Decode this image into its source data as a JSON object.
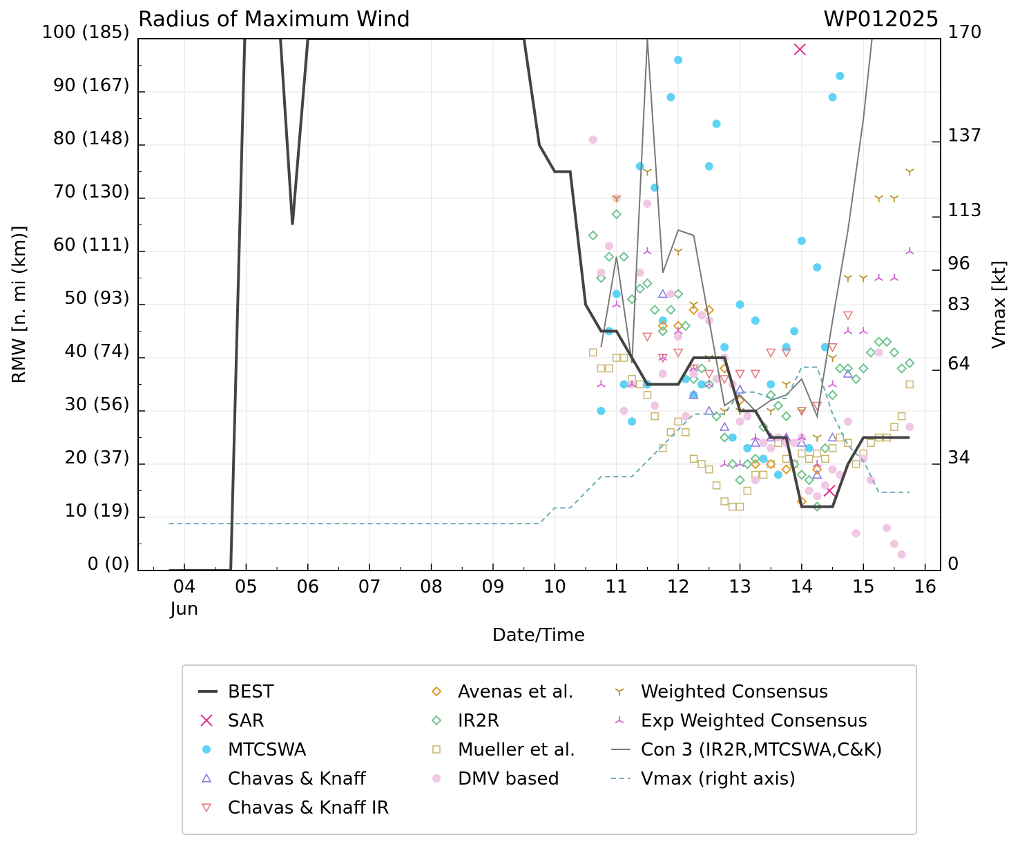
{
  "chart_data": {
    "type": "scatter",
    "title": "Radius of Maximum Wind",
    "storm_id": "WP012025",
    "xlabel": "Date/Time",
    "ylabel": "RMW [n. mi (km)]",
    "y2label": "Vmax [kt]",
    "x_unit": "day of June 2025",
    "xlim": [
      3.25,
      16.25
    ],
    "ylim": [
      0,
      100
    ],
    "grid": true,
    "x_ticks": [
      {
        "value": 4,
        "label": "04"
      },
      {
        "value": 5,
        "label": "05"
      },
      {
        "value": 6,
        "label": "06"
      },
      {
        "value": 7,
        "label": "07"
      },
      {
        "value": 8,
        "label": "08"
      },
      {
        "value": 9,
        "label": "09"
      },
      {
        "value": 10,
        "label": "10"
      },
      {
        "value": 11,
        "label": "11"
      },
      {
        "value": 12,
        "label": "12"
      },
      {
        "value": 13,
        "label": "13"
      },
      {
        "value": 14,
        "label": "14"
      },
      {
        "value": 15,
        "label": "15"
      },
      {
        "value": 16,
        "label": "16"
      }
    ],
    "x_month_label": "Jun",
    "y_ticks": [
      {
        "value": 0,
        "label": "0 (0)"
      },
      {
        "value": 10,
        "label": "10 (19)"
      },
      {
        "value": 20,
        "label": "20 (37)"
      },
      {
        "value": 30,
        "label": "30 (56)"
      },
      {
        "value": 40,
        "label": "40 (74)"
      },
      {
        "value": 50,
        "label": "50 (93)"
      },
      {
        "value": 60,
        "label": "60 (111)"
      },
      {
        "value": 70,
        "label": "70 (130)"
      },
      {
        "value": 80,
        "label": "80 (148)"
      },
      {
        "value": 90,
        "label": "90 (167)"
      },
      {
        "value": 100,
        "label": "100 (185)"
      }
    ],
    "y2_ticks": [
      {
        "value": 0,
        "label": "0"
      },
      {
        "value": 34,
        "label": "34"
      },
      {
        "value": 64,
        "label": "64"
      },
      {
        "value": 83,
        "label": "83"
      },
      {
        "value": 96,
        "label": "96"
      },
      {
        "value": 113,
        "label": "113"
      },
      {
        "value": 137,
        "label": "137"
      },
      {
        "value": 170,
        "label": "170"
      }
    ],
    "y2lim": [
      0,
      170
    ],
    "legend_position": "below",
    "series": [
      {
        "name": "BEST",
        "kind": "line",
        "color": "#444444",
        "style": "solid-thick",
        "x": [
          3.75,
          4.0,
          4.25,
          4.5,
          4.75,
          5.0,
          5.25,
          5.5,
          5.75,
          6.0,
          6.25,
          6.5,
          9.5,
          9.75,
          10.0,
          10.25,
          10.5,
          10.75,
          11.0,
          11.25,
          11.5,
          11.75,
          12.0,
          12.25,
          12.5,
          12.75,
          13.0,
          13.25,
          13.5,
          13.75,
          14.0,
          14.25,
          14.5,
          14.75,
          15.0,
          15.25,
          15.5,
          15.75
        ],
        "y": [
          0,
          0,
          0,
          0,
          0,
          110,
          110,
          110,
          65,
          100,
          100,
          100,
          100,
          80,
          75,
          75,
          50,
          45,
          45,
          40,
          35,
          35,
          35,
          40,
          40,
          40,
          30,
          30,
          25,
          25,
          12,
          12,
          12,
          20,
          25,
          25,
          25,
          25
        ]
      },
      {
        "name": "SAR",
        "kind": "marker",
        "marker": "x",
        "color": "#e0308f",
        "x": [
          13.97,
          14.45
        ],
        "y": [
          98,
          15
        ]
      },
      {
        "name": "MTCSWA",
        "kind": "marker",
        "marker": "dot",
        "color": "#5fd3f5",
        "x": [
          10.75,
          10.88,
          11.0,
          11.12,
          11.25,
          11.38,
          11.5,
          11.62,
          11.75,
          11.88,
          12.0,
          12.12,
          12.25,
          12.38,
          12.5,
          12.62,
          12.75,
          12.88,
          13.0,
          13.12,
          13.25,
          13.38,
          13.5,
          13.62,
          13.75,
          13.88,
          14.0,
          14.12,
          14.25,
          14.38,
          14.5,
          14.62
        ],
        "y": [
          30,
          45,
          52,
          35,
          28,
          76,
          35,
          72,
          47,
          89,
          96,
          36,
          33,
          35,
          76,
          84,
          42,
          25,
          50,
          23,
          47,
          21,
          35,
          18,
          42,
          45,
          62,
          23,
          57,
          42,
          89,
          93
        ]
      },
      {
        "name": "Chavas & Knaff",
        "kind": "marker",
        "marker": "tri-up",
        "color": "#8c7ae6",
        "x": [
          11.75,
          12.25,
          12.5,
          12.75,
          13.0,
          13.25,
          13.5,
          13.75,
          14.0,
          14.25,
          14.5,
          14.75
        ],
        "y": [
          52,
          33,
          30,
          27,
          34,
          24,
          25,
          25,
          24,
          18,
          25,
          37
        ]
      },
      {
        "name": "Chavas & Knaff IR",
        "kind": "marker",
        "marker": "tri-down",
        "color": "#e57d7d",
        "x": [
          11.5,
          11.75,
          12.0,
          12.25,
          12.5,
          12.75,
          13.0,
          13.25,
          13.5,
          13.75,
          14.0,
          14.25,
          14.5,
          14.75
        ],
        "y": [
          44,
          40,
          41,
          38,
          37,
          36,
          37,
          37,
          41,
          41,
          30,
          31,
          42,
          48
        ]
      },
      {
        "name": "Avenas et al.",
        "kind": "marker",
        "marker": "diamond",
        "color": "#e39a2b",
        "x": [
          11.75,
          12.0,
          12.25,
          12.5,
          12.75,
          13.0,
          13.25,
          13.5,
          13.75,
          14.0,
          14.25
        ],
        "y": [
          46,
          46,
          49,
          49,
          38,
          32,
          20,
          20,
          19,
          13,
          19
        ]
      },
      {
        "name": "IR2R",
        "kind": "marker",
        "marker": "diamond",
        "color": "#6cc48c",
        "x": [
          10.62,
          10.75,
          10.88,
          11.0,
          11.12,
          11.25,
          11.38,
          11.5,
          11.62,
          11.75,
          11.88,
          12.0,
          12.12,
          12.25,
          12.38,
          12.5,
          12.62,
          12.75,
          12.88,
          13.0,
          13.12,
          13.25,
          13.38,
          13.5,
          13.62,
          13.75,
          13.88,
          14.0,
          14.12,
          14.25,
          14.38,
          14.5,
          14.62,
          14.75,
          14.88,
          15.0,
          15.12,
          15.25,
          15.38,
          15.5,
          15.62,
          15.75
        ],
        "y": [
          63,
          55,
          59,
          67,
          59,
          51,
          53,
          54,
          49,
          45,
          49,
          52,
          46,
          36,
          38,
          35,
          29,
          25,
          20,
          17,
          20,
          21,
          27,
          33,
          31,
          29,
          20,
          18,
          17,
          12,
          23,
          33,
          38,
          38,
          36,
          38,
          41,
          43,
          43,
          41,
          38,
          39
        ]
      },
      {
        "name": "Mueller et al.",
        "kind": "marker",
        "marker": "square",
        "color": "#c9b56e",
        "x": [
          10.62,
          10.75,
          10.88,
          11.0,
          11.12,
          11.25,
          11.38,
          11.5,
          11.62,
          11.75,
          11.88,
          12.0,
          12.12,
          12.25,
          12.38,
          12.5,
          12.62,
          12.75,
          12.88,
          13.0,
          13.12,
          13.25,
          13.38,
          13.5,
          13.62,
          13.75,
          13.88,
          14.0,
          14.12,
          14.25,
          14.38,
          14.5,
          14.62,
          14.75,
          14.88,
          15.0,
          15.12,
          15.25,
          15.38,
          15.5,
          15.62,
          15.75
        ],
        "y": [
          41,
          38,
          38,
          40,
          40,
          36,
          35,
          33,
          29,
          23,
          26,
          28,
          26,
          21,
          20,
          19,
          16,
          13,
          12,
          12,
          15,
          18,
          18,
          20,
          24,
          21,
          20,
          22,
          21,
          22,
          21,
          23,
          25,
          24,
          20,
          22,
          24,
          25,
          25,
          27,
          29,
          35
        ]
      },
      {
        "name": "DMV based",
        "kind": "marker",
        "marker": "dot",
        "color": "#f0c8e4",
        "x": [
          10.62,
          10.75,
          10.88,
          11.0,
          11.12,
          11.25,
          11.38,
          11.5,
          11.62,
          11.75,
          11.88,
          12.0,
          12.12,
          12.25,
          12.38,
          12.5,
          12.62,
          12.75,
          12.88,
          13.0,
          13.12,
          13.25,
          13.38,
          13.5,
          13.62,
          13.75,
          13.88,
          14.0,
          14.12,
          14.25,
          14.38,
          14.5,
          14.62,
          14.75,
          14.88,
          15.0,
          15.12,
          15.25,
          15.38,
          15.5,
          15.62,
          15.75
        ],
        "y": [
          81,
          56,
          61,
          70,
          30,
          35,
          56,
          69,
          31,
          37,
          52,
          44,
          29,
          37,
          48,
          47,
          36,
          40,
          35,
          28,
          29,
          17,
          24,
          23,
          25,
          24,
          24,
          25,
          15,
          14,
          16,
          19,
          18,
          28,
          7,
          21,
          17,
          41,
          8,
          5,
          3,
          27
        ]
      },
      {
        "name": "Weighted Consensus",
        "kind": "marker",
        "marker": "tri-y-down",
        "color": "#b8902a",
        "x": [
          11.0,
          11.5,
          12.0,
          12.25,
          12.5,
          12.75,
          13.0,
          13.5,
          13.75,
          14.0,
          14.25,
          14.5,
          14.75,
          15.0,
          15.25,
          15.5,
          15.75
        ],
        "y": [
          70,
          75,
          60,
          50,
          40,
          30,
          30,
          30,
          35,
          30,
          25,
          40,
          55,
          55,
          70,
          70,
          75
        ]
      },
      {
        "name": "Exp Weighted Consensus",
        "kind": "marker",
        "marker": "tri-y-up",
        "color": "#cf5fd8",
        "x": [
          10.75,
          11.0,
          11.25,
          11.5,
          11.75,
          12.0,
          12.25,
          12.5,
          12.75,
          13.0,
          13.25,
          13.5,
          13.75,
          14.0,
          14.25,
          14.5,
          14.75,
          15.0,
          15.25,
          15.5,
          15.75
        ],
        "y": [
          35,
          50,
          35,
          60,
          40,
          45,
          38,
          35,
          20,
          20,
          25,
          25,
          25,
          25,
          20,
          35,
          45,
          45,
          55,
          55,
          60
        ]
      },
      {
        "name": "Con 3 (IR2R,MTCSWA,C&K)",
        "kind": "line",
        "color": "#777777",
        "style": "solid-thin",
        "x": [
          10.75,
          11.0,
          11.25,
          11.5,
          11.75,
          12.0,
          12.25,
          12.5,
          12.75,
          13.0,
          13.25,
          13.5,
          13.75,
          14.0,
          14.25,
          14.5,
          14.75,
          15.0,
          15.25,
          15.5
        ],
        "y": [
          42,
          59,
          39,
          100,
          56,
          64,
          63,
          47,
          31,
          33,
          30,
          32,
          33,
          36,
          29,
          47,
          64,
          85,
          112,
          110
        ]
      },
      {
        "name": "Vmax (right axis)",
        "kind": "line",
        "color": "#6aaab5",
        "style": "dashed",
        "axis": "right",
        "x": [
          3.75,
          9.75,
          10.0,
          10.25,
          10.75,
          11.25,
          11.75,
          12.0,
          12.25,
          12.75,
          13.0,
          13.25,
          13.5,
          13.75,
          14.0,
          14.25,
          14.5,
          14.75,
          15.0,
          15.25,
          15.5,
          15.75
        ],
        "y": [
          15,
          15,
          20,
          20,
          30,
          30,
          40,
          45,
          50,
          50,
          57,
          57,
          55,
          55,
          65,
          65,
          50,
          40,
          35,
          25,
          25,
          25
        ]
      }
    ]
  },
  "legend": {
    "items": [
      {
        "label": "BEST"
      },
      {
        "label": "SAR"
      },
      {
        "label": "MTCSWA"
      },
      {
        "label": "Chavas & Knaff"
      },
      {
        "label": "Chavas & Knaff IR"
      },
      {
        "label": "Avenas et al."
      },
      {
        "label": "IR2R"
      },
      {
        "label": "Mueller et al."
      },
      {
        "label": "DMV based"
      },
      {
        "label": "Weighted Consensus"
      },
      {
        "label": "Exp Weighted Consensus"
      },
      {
        "label": "Con 3 (IR2R,MTCSWA,C&K)"
      },
      {
        "label": "Vmax (right axis)"
      }
    ]
  }
}
